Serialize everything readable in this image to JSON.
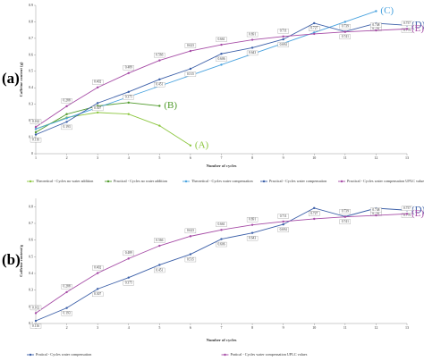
{
  "chart_data": [
    {
      "type": "line",
      "panel_label": "(a)",
      "y_label": "Caffeine content (g)",
      "x_label": "Number of cycles",
      "x": [
        1,
        2,
        3,
        4,
        5,
        6,
        7,
        8,
        9,
        10,
        11,
        12,
        13
      ],
      "xlim": [
        1,
        13
      ],
      "xticks": [
        1,
        2,
        3,
        4,
        5,
        6,
        7,
        8,
        9,
        10,
        11,
        12,
        13
      ],
      "ylim": [
        0,
        0.9
      ],
      "yticks": [
        0,
        0.1,
        0.2,
        0.3,
        0.4,
        0.5,
        0.6,
        0.7,
        0.8,
        0.9
      ],
      "series": [
        {
          "name": "Theoretical - Cycles no water addition",
          "color": "#8cc63f",
          "values": [
            0.15,
            0.22,
            0.25,
            0.24,
            0.17,
            0.05,
            null,
            null,
            null,
            null,
            null,
            null,
            null
          ]
        },
        {
          "name": "Practical - Cycles no water addition",
          "color": "#4f9a2a",
          "values": [
            0.13,
            0.24,
            0.29,
            0.31,
            0.29,
            null,
            null,
            null,
            null,
            null,
            null,
            null,
            null
          ]
        },
        {
          "name": "Theoretical - Cycles water compensation",
          "color": "#4aa3df",
          "values": [
            0.15,
            0.215,
            0.28,
            0.345,
            0.41,
            0.475,
            0.54,
            0.605,
            0.67,
            0.735,
            0.8,
            0.865,
            null
          ]
        },
        {
          "name": "Practical - Cycles water compensation",
          "color": "#3b5fa8",
          "values": [
            0.116,
            0.193,
            0.307,
            0.375,
            0.451,
            0.515,
            0.606,
            0.643,
            0.694,
            0.792,
            0.741,
            0.791,
            0.779
          ]
        },
        {
          "name": "Practical - Cycles water compensation UPLC values",
          "color": "#a64ca6",
          "values": [
            0.162,
            0.288,
            0.402,
            0.489,
            0.566,
            0.623,
            0.661,
            0.691,
            0.711,
            0.727,
            0.739,
            0.748,
            0.757
          ]
        }
      ],
      "annotations": [
        "(A)",
        "(B)",
        "(C)",
        "(D)",
        "(E)"
      ]
    },
    {
      "type": "line",
      "panel_label": "(b)",
      "y_label": "Caffeine content/g",
      "x_label": "Number of cycles",
      "x": [
        1,
        2,
        3,
        4,
        5,
        6,
        7,
        8,
        9,
        10,
        11,
        12,
        13
      ],
      "xlim": [
        1,
        13
      ],
      "xticks": [
        1,
        2,
        3,
        4,
        5,
        6,
        7,
        8,
        9,
        10,
        11,
        12,
        13
      ],
      "ylim": [
        0.1,
        0.85
      ],
      "yticks": [
        0.1,
        0.2,
        0.3,
        0.4,
        0.5,
        0.6,
        0.7,
        0.8
      ],
      "series": [
        {
          "name": "Pratical - Cycles water compensation",
          "color": "#3b5fa8",
          "values": [
            0.116,
            0.193,
            0.307,
            0.375,
            0.451,
            0.515,
            0.606,
            0.643,
            0.694,
            0.792,
            0.741,
            0.791,
            0.779
          ]
        },
        {
          "name": "Pratical - Cycles water compensation UPLC values",
          "color": "#a64ca6",
          "values": [
            0.162,
            0.288,
            0.402,
            0.489,
            0.566,
            0.623,
            0.661,
            0.691,
            0.711,
            0.727,
            0.739,
            0.748,
            0.757
          ]
        }
      ],
      "annotations": [
        "(D)",
        "(E)"
      ]
    }
  ]
}
